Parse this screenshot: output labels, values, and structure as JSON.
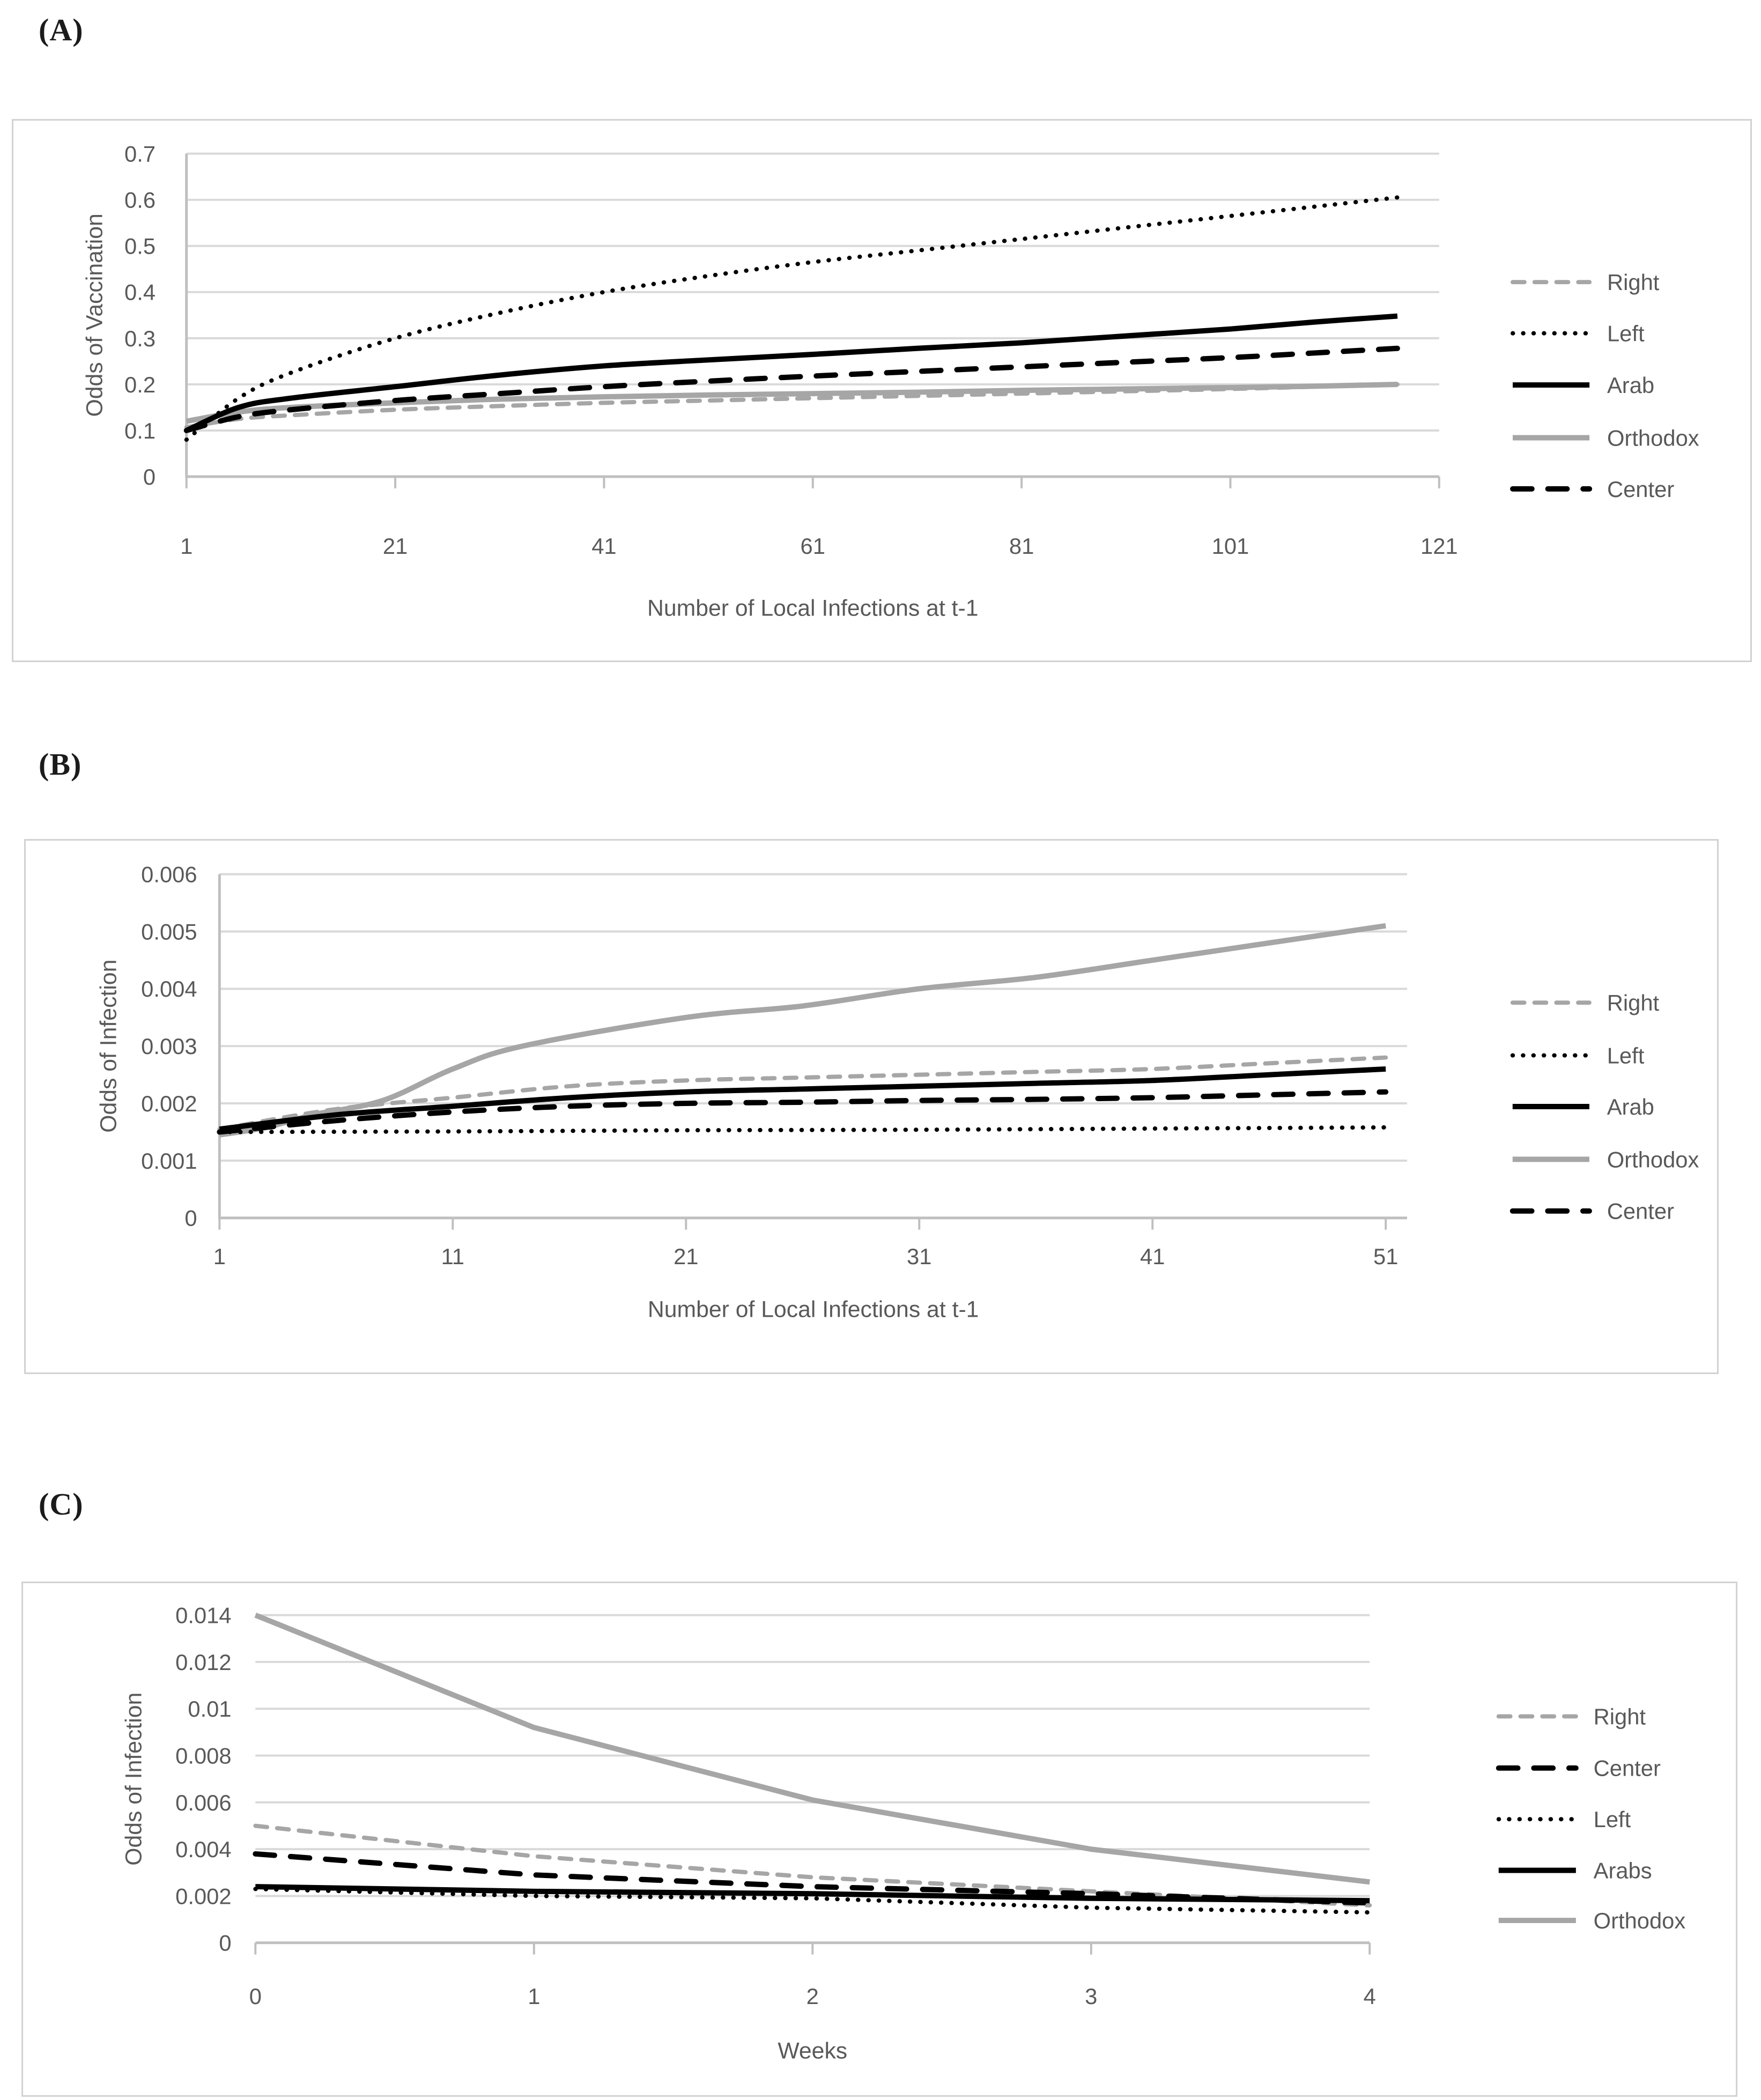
{
  "styles": {
    "gray_line": "#a6a6a6",
    "black_line": "#000000",
    "gridline": "#d9d9d9",
    "axis_line": "#bfbfbf",
    "label_text": "#595959",
    "panel_label_text": "#1b1b1b",
    "box_border": "#d2d2d2",
    "background": "#ffffff"
  },
  "chart_data": [
    {
      "panel_label": "(A)",
      "type": "line",
      "xlabel": "Number of Local Infections at t-1",
      "ylabel": "Odds of Vaccination",
      "x_ticks": [
        "1",
        "21",
        "41",
        "61",
        "81",
        "101",
        "121"
      ],
      "x_tick_values": [
        1,
        21,
        41,
        61,
        81,
        101,
        121
      ],
      "xlim": [
        1,
        121
      ],
      "y_ticks": [
        "0",
        "0.1",
        "0.2",
        "0.3",
        "0.4",
        "0.5",
        "0.6",
        "0.7"
      ],
      "y_tick_values": [
        0,
        0.1,
        0.2,
        0.3,
        0.4,
        0.5,
        0.6,
        0.7
      ],
      "ylim": [
        0,
        0.7
      ],
      "grid": "horizontal",
      "legend_position": "right",
      "legend": [
        "Right",
        "Left",
        "Arab",
        "Orthodox",
        "Center"
      ],
      "series": [
        {
          "name": "Orthodox",
          "color": "gray",
          "dash": "solid",
          "x": [
            1,
            6,
            11,
            21,
            31,
            41,
            51,
            61,
            71,
            81,
            91,
            101,
            109,
            117
          ],
          "y": [
            0.12,
            0.14,
            0.15,
            0.16,
            0.168,
            0.173,
            0.177,
            0.18,
            0.183,
            0.187,
            0.19,
            0.193,
            0.196,
            0.2
          ]
        },
        {
          "name": "Right",
          "color": "gray",
          "dash": "dash",
          "x": [
            1,
            6,
            11,
            21,
            31,
            41,
            51,
            61,
            71,
            81,
            91,
            101,
            109,
            117
          ],
          "y": [
            0.107,
            0.125,
            0.133,
            0.145,
            0.153,
            0.16,
            0.165,
            0.17,
            0.175,
            0.18,
            0.185,
            0.19,
            0.195,
            0.2
          ]
        },
        {
          "name": "Center",
          "color": "black",
          "dash": "long-dash",
          "x": [
            1,
            6,
            11,
            21,
            31,
            41,
            51,
            61,
            71,
            81,
            91,
            101,
            109,
            117
          ],
          "y": [
            0.1,
            0.13,
            0.145,
            0.165,
            0.18,
            0.195,
            0.207,
            0.218,
            0.228,
            0.238,
            0.248,
            0.258,
            0.268,
            0.278
          ]
        },
        {
          "name": "Arab",
          "color": "black",
          "dash": "solid",
          "x": [
            1,
            6,
            11,
            21,
            31,
            41,
            51,
            61,
            71,
            81,
            91,
            101,
            109,
            117
          ],
          "y": [
            0.1,
            0.15,
            0.17,
            0.195,
            0.22,
            0.24,
            0.253,
            0.265,
            0.278,
            0.29,
            0.305,
            0.32,
            0.335,
            0.348
          ]
        },
        {
          "name": "Left",
          "color": "black",
          "dash": "dot",
          "x": [
            1,
            6,
            11,
            21,
            31,
            41,
            51,
            61,
            71,
            81,
            91,
            101,
            109,
            117
          ],
          "y": [
            0.08,
            0.17,
            0.225,
            0.3,
            0.355,
            0.4,
            0.435,
            0.465,
            0.49,
            0.515,
            0.54,
            0.565,
            0.585,
            0.605
          ]
        }
      ]
    },
    {
      "panel_label": "(B)",
      "type": "line",
      "xlabel": "Number of Local Infections at t-1",
      "ylabel": "Odds of Infection",
      "x_ticks": [
        "1",
        "11",
        "21",
        "31",
        "41",
        "51"
      ],
      "x_tick_values": [
        1,
        11,
        21,
        31,
        41,
        51
      ],
      "xlim": [
        1,
        51
      ],
      "y_ticks": [
        "0",
        "0.001",
        "0.002",
        "0.003",
        "0.004",
        "0.005",
        "0.006"
      ],
      "y_tick_values": [
        0,
        0.001,
        0.002,
        0.003,
        0.004,
        0.005,
        0.006
      ],
      "ylim": [
        0,
        0.006
      ],
      "grid": "horizontal",
      "legend_position": "right",
      "legend": [
        "Right",
        "Left",
        "Arab",
        "Orthodox",
        "Center"
      ],
      "series": [
        {
          "name": "Orthodox",
          "color": "gray",
          "dash": "solid",
          "x": [
            1,
            3,
            5,
            8,
            11,
            14,
            21,
            26,
            31,
            36,
            41,
            46,
            51
          ],
          "y": [
            0.00145,
            0.00158,
            0.0018,
            0.00205,
            0.0026,
            0.003,
            0.0035,
            0.0037,
            0.004,
            0.0042,
            0.0045,
            0.0048,
            0.0051
          ]
        },
        {
          "name": "Right",
          "color": "gray",
          "dash": "dash",
          "x": [
            1,
            6,
            11,
            16,
            21,
            26,
            31,
            36,
            41,
            46,
            51
          ],
          "y": [
            0.00155,
            0.0019,
            0.0021,
            0.0023,
            0.0024,
            0.00245,
            0.0025,
            0.00255,
            0.0026,
            0.0027,
            0.0028
          ]
        },
        {
          "name": "Center",
          "color": "black",
          "dash": "long-dash",
          "x": [
            1,
            6,
            11,
            16,
            21,
            26,
            31,
            36,
            41,
            46,
            51
          ],
          "y": [
            0.0015,
            0.0017,
            0.00185,
            0.00195,
            0.002,
            0.00202,
            0.00205,
            0.00207,
            0.0021,
            0.00215,
            0.0022
          ]
        },
        {
          "name": "Arab",
          "color": "black",
          "dash": "solid",
          "x": [
            1,
            6,
            11,
            16,
            21,
            26,
            31,
            36,
            41,
            46,
            51
          ],
          "y": [
            0.00155,
            0.0018,
            0.00195,
            0.0021,
            0.0022,
            0.00225,
            0.0023,
            0.00235,
            0.0024,
            0.0025,
            0.0026
          ]
        },
        {
          "name": "Left",
          "color": "black",
          "dash": "dot",
          "x": [
            1,
            11,
            21,
            31,
            41,
            51
          ],
          "y": [
            0.0015,
            0.00151,
            0.00153,
            0.00154,
            0.00156,
            0.00158
          ]
        }
      ]
    },
    {
      "panel_label": "(C)",
      "type": "line",
      "xlabel": "Weeks",
      "ylabel": "Odds of Infection",
      "x_ticks": [
        "0",
        "1",
        "2",
        "3",
        "4"
      ],
      "x_tick_values": [
        0,
        1,
        2,
        3,
        4
      ],
      "xlim": [
        0,
        4
      ],
      "y_ticks": [
        "0",
        "0.002",
        "0.004",
        "0.006",
        "0.008",
        "0.01",
        "0.012",
        "0.014"
      ],
      "y_tick_values": [
        0,
        0.002,
        0.004,
        0.006,
        0.008,
        0.01,
        0.012,
        0.014
      ],
      "ylim": [
        0,
        0.014
      ],
      "grid": "horizontal",
      "legend_position": "right",
      "legend": [
        "Right",
        "Center",
        "Left",
        "Arabs",
        "Orthodox"
      ],
      "series": [
        {
          "name": "Orthodox",
          "color": "gray",
          "dash": "solid",
          "x": [
            0,
            1,
            2,
            3,
            4
          ],
          "y": [
            0.014,
            0.0092,
            0.0061,
            0.004,
            0.0026
          ]
        },
        {
          "name": "Right",
          "color": "gray",
          "dash": "dash",
          "x": [
            0,
            1,
            2,
            3,
            4
          ],
          "y": [
            0.005,
            0.0037,
            0.0028,
            0.0022,
            0.0016
          ]
        },
        {
          "name": "Center",
          "color": "black",
          "dash": "long-dash",
          "x": [
            0,
            1,
            2,
            3,
            4
          ],
          "y": [
            0.0038,
            0.0029,
            0.0024,
            0.0021,
            0.0017
          ]
        },
        {
          "name": "Arabs",
          "color": "black",
          "dash": "solid",
          "x": [
            0,
            1,
            2,
            3,
            4
          ],
          "y": [
            0.0024,
            0.0022,
            0.0021,
            0.0019,
            0.0018
          ]
        },
        {
          "name": "Left",
          "color": "black",
          "dash": "dot",
          "x": [
            0,
            1,
            2,
            3,
            4
          ],
          "y": [
            0.0023,
            0.002,
            0.0019,
            0.0015,
            0.0013
          ]
        }
      ]
    }
  ]
}
